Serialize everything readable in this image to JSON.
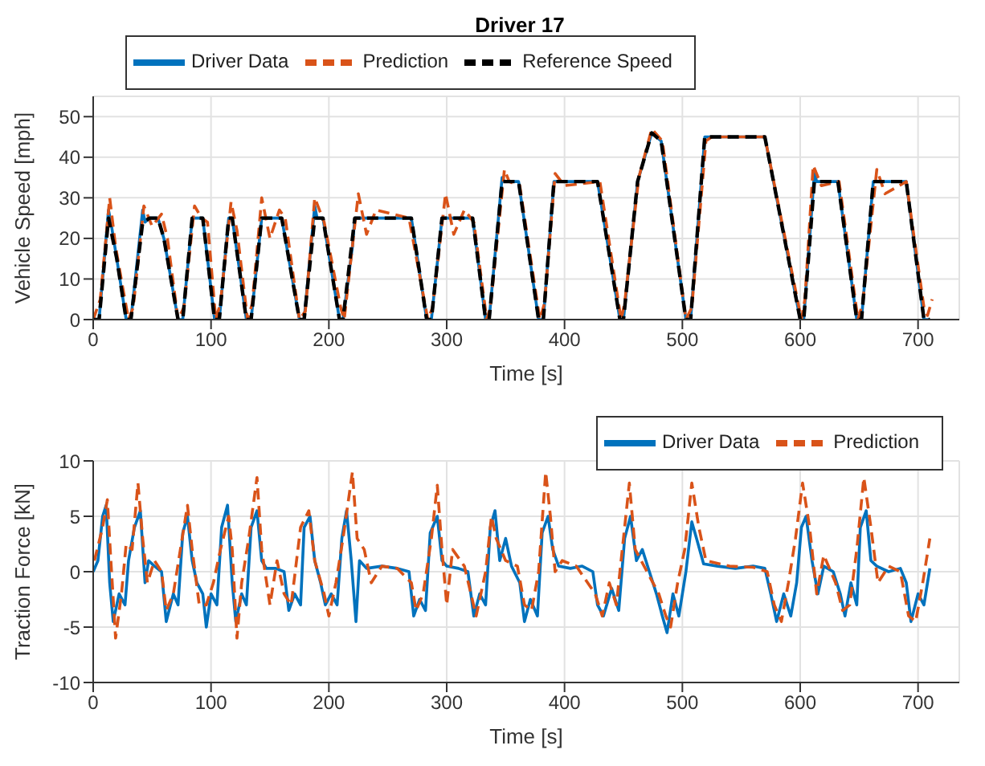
{
  "chart_data": [
    {
      "type": "line",
      "title": "Driver 17",
      "xlabel": "Time [s]",
      "ylabel": "Vehicle Speed [mph]",
      "xlim": [
        0,
        735
      ],
      "xticks": [
        0,
        100,
        200,
        300,
        400,
        500,
        600,
        700
      ],
      "ylim": [
        0,
        55
      ],
      "yticks": [
        0,
        10,
        20,
        30,
        40,
        50
      ],
      "grid": true,
      "legend": "top",
      "marker": "none",
      "series": [
        {
          "name": "Driver Data",
          "color": "#0072bd",
          "line_style": "solid",
          "x": [
            0,
            5,
            13,
            15,
            20,
            28,
            32,
            42,
            44,
            48,
            55,
            60,
            72,
            76,
            84,
            93,
            103,
            107,
            115,
            118,
            130,
            134,
            143,
            160,
            175,
            179,
            188,
            190,
            195,
            209,
            212,
            220,
            222,
            270,
            283,
            287,
            296,
            322,
            333,
            336,
            347,
            349,
            361,
            378,
            382,
            391,
            428,
            447,
            450,
            462,
            474,
            482,
            503,
            507,
            519,
            570,
            600,
            603,
            612,
            614,
            632,
            648,
            652,
            662,
            690,
            705,
            710
          ],
          "values": [
            0,
            0,
            27,
            24,
            15,
            0,
            0,
            27,
            24,
            25,
            25,
            20,
            0,
            0,
            25,
            25,
            0,
            0,
            25,
            25,
            0,
            0,
            25,
            25,
            0,
            0,
            28,
            25,
            25,
            0,
            0,
            18,
            25,
            25,
            0,
            0,
            25,
            25,
            0,
            0,
            35,
            34,
            34,
            0,
            0,
            34,
            34,
            0,
            0,
            34,
            46,
            44,
            0,
            0,
            45,
            45,
            0,
            0,
            36,
            34,
            34,
            0,
            0,
            34,
            34,
            0,
            0
          ]
        },
        {
          "name": "Prediction",
          "color": "#d95319",
          "line_style": "dashed",
          "x": [
            0,
            6,
            14,
            19,
            25,
            30,
            34,
            43,
            50,
            58,
            63,
            72,
            77,
            86,
            92,
            97,
            104,
            108,
            117,
            122,
            131,
            135,
            143,
            150,
            158,
            163,
            175,
            180,
            188,
            196,
            210,
            213,
            225,
            232,
            240,
            268,
            284,
            288,
            299,
            306,
            315,
            323,
            334,
            337,
            349,
            353,
            362,
            379,
            383,
            392,
            400,
            430,
            448,
            451,
            463,
            474,
            483,
            503,
            508,
            520,
            525,
            535,
            570,
            601,
            604,
            611,
            618,
            633,
            649,
            653,
            665,
            672,
            690,
            705,
            708,
            712
          ],
          "values": [
            0,
            5,
            30,
            18,
            8,
            0,
            3,
            28,
            23,
            26,
            20,
            0,
            3,
            28,
            25,
            24,
            0,
            4,
            29,
            22,
            0,
            4,
            30,
            20,
            27,
            25,
            0,
            2,
            30,
            24,
            3,
            0,
            31,
            21,
            27,
            25,
            0,
            3,
            31,
            21,
            27,
            24,
            0,
            3,
            37,
            34,
            33,
            0,
            4,
            36,
            33,
            34,
            0,
            4,
            35,
            47,
            44,
            0,
            3,
            44,
            45,
            45,
            45,
            0,
            5,
            38,
            33,
            34,
            0,
            4,
            37,
            31,
            34,
            3,
            1,
            5
          ]
        },
        {
          "name": "Reference Speed",
          "color": "#000000",
          "line_style": "dashed",
          "x": [
            0,
            5,
            13,
            20,
            28,
            32,
            42,
            48,
            55,
            60,
            72,
            76,
            84,
            93,
            103,
            107,
            115,
            118,
            130,
            134,
            143,
            160,
            175,
            179,
            188,
            195,
            209,
            212,
            222,
            270,
            283,
            287,
            296,
            322,
            333,
            336,
            347,
            361,
            378,
            382,
            391,
            428,
            447,
            450,
            462,
            474,
            482,
            503,
            507,
            519,
            570,
            600,
            603,
            612,
            632,
            648,
            652,
            662,
            690,
            705,
            710
          ],
          "values": [
            0,
            0,
            25,
            15,
            0,
            0,
            24,
            25,
            25,
            20,
            0,
            0,
            25,
            25,
            0,
            0,
            25,
            25,
            0,
            0,
            25,
            25,
            0,
            0,
            25,
            25,
            0,
            0,
            25,
            25,
            0,
            0,
            25,
            25,
            0,
            0,
            34,
            34,
            0,
            0,
            34,
            34,
            0,
            0,
            34,
            46,
            44,
            0,
            0,
            45,
            45,
            0,
            0,
            34,
            34,
            0,
            0,
            34,
            34,
            0,
            0
          ]
        }
      ]
    },
    {
      "type": "line",
      "xlabel": "Time [s]",
      "ylabel": "Traction Force [kN]",
      "xlim": [
        0,
        735
      ],
      "xticks": [
        0,
        100,
        200,
        300,
        400,
        500,
        600,
        700
      ],
      "ylim": [
        -10,
        10
      ],
      "yticks": [
        -10,
        -5,
        0,
        5,
        10
      ],
      "grid": true,
      "legend": "top right",
      "marker": "none",
      "series": [
        {
          "name": "Driver Data",
          "color": "#0072bd",
          "line_style": "solid",
          "x": [
            0,
            4,
            8,
            11,
            14,
            17,
            22,
            27,
            30,
            35,
            40,
            44,
            47,
            52,
            58,
            62,
            68,
            72,
            76,
            80,
            84,
            88,
            93,
            96,
            100,
            105,
            109,
            114,
            118,
            121,
            126,
            130,
            134,
            139,
            143,
            147,
            155,
            162,
            166,
            171,
            176,
            179,
            184,
            188,
            193,
            197,
            202,
            207,
            211,
            215,
            219,
            223,
            226,
            232,
            245,
            258,
            268,
            272,
            277,
            282,
            286,
            292,
            296,
            300,
            310,
            318,
            323,
            328,
            333,
            337,
            341,
            345,
            350,
            355,
            362,
            366,
            371,
            377,
            381,
            386,
            390,
            395,
            405,
            415,
            424,
            428,
            433,
            440,
            446,
            451,
            456,
            461,
            466,
            472,
            478,
            483,
            487,
            492,
            497,
            503,
            508,
            512,
            518,
            530,
            545,
            560,
            570,
            575,
            580,
            586,
            592,
            597,
            601,
            605,
            610,
            615,
            620,
            628,
            634,
            638,
            643,
            648,
            651,
            656,
            660,
            665,
            675,
            685,
            690,
            694,
            700,
            705,
            710
          ],
          "values": [
            0,
            1,
            5,
            6,
            -1,
            -4.5,
            -2,
            -3,
            1,
            4,
            5.5,
            -1,
            1,
            0.5,
            0,
            -4.5,
            -2,
            -3,
            3.5,
            5,
            1,
            -1,
            -2,
            -5,
            -2,
            -3,
            4,
            6,
            -1,
            -4.5,
            -2,
            -3,
            4,
            5.5,
            1,
            0.3,
            0.3,
            0,
            -3.5,
            -2,
            -3,
            4,
            5,
            1,
            -1,
            -3,
            -2,
            -3,
            3,
            5.5,
            1,
            -4.5,
            1,
            0.3,
            0.5,
            0.3,
            0,
            -4,
            -2.5,
            -3.5,
            3.5,
            5,
            1,
            0.5,
            0.3,
            0,
            -4,
            -2,
            -3,
            4,
            5.5,
            1,
            3,
            0.5,
            -1,
            -4.5,
            -2.5,
            -4,
            3.5,
            5,
            2,
            0.5,
            0.3,
            0.5,
            0,
            -3,
            -4,
            -1.5,
            -3.5,
            3,
            5,
            1,
            2,
            0,
            -2,
            -4,
            -5.5,
            -2,
            -4,
            0,
            4.5,
            3,
            0.7,
            0.5,
            0.3,
            0.5,
            0.3,
            -2,
            -4.5,
            -2,
            -4,
            -1,
            4,
            5,
            1,
            -2,
            0.5,
            0,
            -2,
            -4,
            -1,
            -3,
            4,
            5.5,
            1,
            0.5,
            0,
            0.3,
            -1,
            -4.5,
            -2,
            -3,
            0.3
          ]
        },
        {
          "name": "Prediction",
          "color": "#d95319",
          "line_style": "dashed",
          "x": [
            1,
            8,
            12,
            15,
            19,
            24,
            28,
            33,
            38,
            42,
            46,
            52,
            58,
            62,
            68,
            74,
            80,
            84,
            90,
            96,
            102,
            108,
            115,
            118,
            122,
            126,
            132,
            139,
            143,
            150,
            156,
            162,
            168,
            176,
            183,
            188,
            196,
            200,
            206,
            212,
            220,
            224,
            230,
            236,
            245,
            258,
            270,
            274,
            280,
            287,
            292,
            296,
            300,
            305,
            315,
            325,
            333,
            338,
            342,
            350,
            360,
            366,
            372,
            378,
            384,
            388,
            392,
            398,
            410,
            426,
            432,
            438,
            444,
            450,
            455,
            460,
            470,
            480,
            486,
            490,
            496,
            502,
            508,
            514,
            520,
            540,
            560,
            572,
            578,
            584,
            590,
            596,
            602,
            608,
            614,
            620,
            630,
            636,
            642,
            648,
            654,
            660,
            666,
            675,
            685,
            692,
            698,
            704,
            710
          ],
          "values": [
            1,
            4,
            6.5,
            1,
            -6,
            -2,
            2.5,
            2,
            8,
            3,
            -1,
            1,
            0,
            -3.5,
            -2,
            2,
            6,
            2,
            -3,
            -3,
            -1,
            2,
            5,
            2,
            -6,
            -1,
            3,
            8.5,
            2,
            -3,
            1,
            -2,
            -3,
            4,
            5.5,
            1,
            -2,
            -4,
            -1,
            3,
            9,
            3,
            2,
            -1,
            0.5,
            0.3,
            -1,
            -3.5,
            -2,
            3,
            7.8,
            2,
            -3,
            2,
            0.5,
            -4,
            0,
            5,
            3,
            1,
            0.5,
            -3,
            -3.5,
            0,
            9,
            5,
            0,
            1,
            0.5,
            -2,
            -4,
            -1,
            -3,
            3,
            8,
            2,
            0,
            -2,
            -4,
            -5,
            -1,
            2,
            8,
            4,
            1,
            0.5,
            0.4,
            0,
            -3,
            -4.5,
            -1,
            3,
            8,
            4,
            -2,
            1.5,
            -1,
            -3.5,
            -3,
            2,
            8.5,
            4,
            -1,
            0.5,
            0,
            -4,
            -4.5,
            -1,
            3
          ]
        }
      ]
    }
  ]
}
